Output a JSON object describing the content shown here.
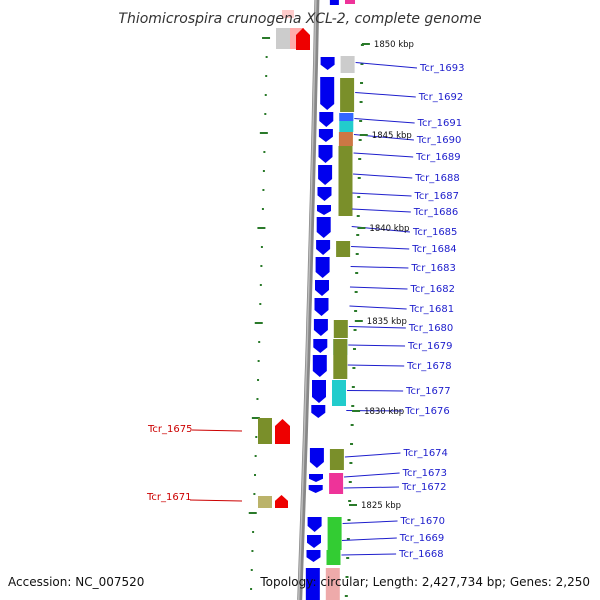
{
  "title": "Thiomicrospira crunogena XCL-2, complete genome",
  "footer": {
    "accession": "Accession: NC_007520",
    "summary": "Topology: circular; Length: 2,427,734 bp; Genes: 2,250"
  },
  "colors": {
    "forward_gene": "#0000ee",
    "reverse_gene": "#ee0000",
    "forward_label": "#1e1ecc",
    "reverse_label": "#cc0000",
    "tick": "#2a7a2a",
    "backbone": "#888888",
    "cog_olive": "#7a8f2a",
    "cog_cyan": "#22cccc",
    "cog_magenta": "#ee3399",
    "cog_green": "#33cc33",
    "cog_grey": "#cccccc",
    "cog_khaki": "#bbb36a"
  },
  "position_marks": [
    "1850 kbp",
    "1845 kbp",
    "1840 kbp",
    "1835 kbp",
    "1830 kbp",
    "1825 kbp"
  ],
  "forward_genes": [
    "Tcr_1693",
    "Tcr_1692",
    "Tcr_1691",
    "Tcr_1690",
    "Tcr_1689",
    "Tcr_1688",
    "Tcr_1687",
    "Tcr_1686",
    "Tcr_1685",
    "Tcr_1684",
    "Tcr_1683",
    "Tcr_1682",
    "Tcr_1681",
    "Tcr_1680",
    "Tcr_1679",
    "Tcr_1678",
    "Tcr_1677",
    "Tcr_1676",
    "Tcr_1674",
    "Tcr_1673",
    "Tcr_1672",
    "Tcr_1670",
    "Tcr_1669",
    "Tcr_1668"
  ],
  "reverse_genes": [
    "Tcr_1675",
    "Tcr_1671"
  ]
}
